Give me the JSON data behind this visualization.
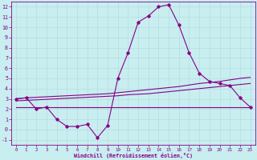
{
  "xlabel": "Windchill (Refroidissement éolien,°C)",
  "bg_color": "#c8eef0",
  "grid_color": "#b8dfe2",
  "line_color": "#880088",
  "x_hours": [
    0,
    1,
    2,
    3,
    4,
    5,
    6,
    7,
    8,
    9,
    10,
    11,
    12,
    13,
    14,
    15,
    16,
    17,
    18,
    19,
    20,
    21,
    22,
    23
  ],
  "y_windchill": [
    3.0,
    3.1,
    2.0,
    2.2,
    1.0,
    0.3,
    0.3,
    0.5,
    -0.8,
    0.4,
    5.0,
    7.5,
    10.5,
    11.1,
    12.0,
    12.2,
    10.2,
    7.5,
    5.5,
    4.7,
    4.5,
    4.3,
    3.1,
    2.2
  ],
  "y_upper": [
    3.0,
    3.1,
    3.15,
    3.2,
    3.25,
    3.3,
    3.35,
    3.4,
    3.45,
    3.5,
    3.6,
    3.7,
    3.8,
    3.9,
    4.0,
    4.1,
    4.2,
    4.35,
    4.5,
    4.6,
    4.7,
    4.85,
    5.0,
    5.1
  ],
  "y_lower": [
    2.8,
    2.85,
    2.9,
    2.95,
    3.0,
    3.05,
    3.1,
    3.15,
    3.2,
    3.25,
    3.3,
    3.4,
    3.45,
    3.5,
    3.6,
    3.7,
    3.8,
    3.9,
    4.0,
    4.1,
    4.2,
    4.3,
    4.4,
    4.5
  ],
  "y_flat": [
    2.2,
    2.2,
    2.2,
    2.2,
    2.2,
    2.2,
    2.2,
    2.2,
    2.2,
    2.2,
    2.2,
    2.2,
    2.2,
    2.2,
    2.2,
    2.2,
    2.2,
    2.2,
    2.2,
    2.2,
    2.2,
    2.2,
    2.2,
    2.2
  ],
  "ylim": [
    -1.5,
    12.5
  ],
  "yticks": [
    -1,
    0,
    1,
    2,
    3,
    4,
    5,
    6,
    7,
    8,
    9,
    10,
    11,
    12
  ],
  "xlim": [
    -0.5,
    23.5
  ],
  "xticks": [
    0,
    1,
    2,
    3,
    4,
    5,
    6,
    7,
    8,
    9,
    10,
    11,
    12,
    13,
    14,
    15,
    16,
    17,
    18,
    19,
    20,
    21,
    22,
    23
  ]
}
